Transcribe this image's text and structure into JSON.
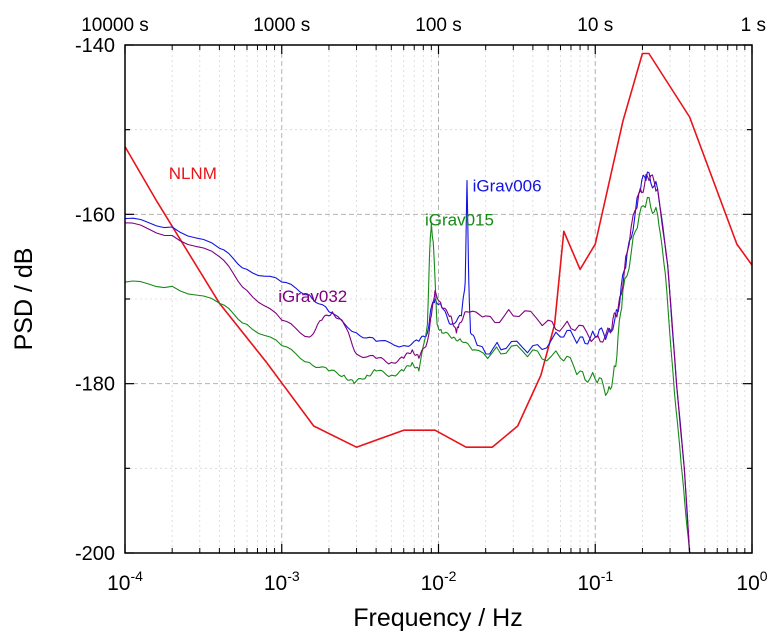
{
  "chart_data": {
    "type": "line",
    "xlabel": "Frequency / Hz",
    "ylabel": "PSD / dB",
    "x_scale": "log",
    "xlim": [
      0.0001,
      1
    ],
    "ylim": [
      -200,
      -140
    ],
    "grid": true,
    "x_ticks": [
      {
        "value": 0.0001,
        "base": "10",
        "exp": "-4"
      },
      {
        "value": 0.001,
        "base": "10",
        "exp": "-3"
      },
      {
        "value": 0.01,
        "base": "10",
        "exp": "-2"
      },
      {
        "value": 0.1,
        "base": "10",
        "exp": "-1"
      },
      {
        "value": 1,
        "base": "10",
        "exp": "0"
      }
    ],
    "top_ticks": [
      {
        "value": 0.0001,
        "label": "10000 s"
      },
      {
        "value": 0.001,
        "label": "1000 s"
      },
      {
        "value": 0.01,
        "label": "100 s"
      },
      {
        "value": 0.1,
        "label": "10 s"
      },
      {
        "value": 1,
        "label": "1 s"
      }
    ],
    "y_ticks": [
      {
        "value": -140,
        "label": "-140"
      },
      {
        "value": -160,
        "label": "-160"
      },
      {
        "value": -180,
        "label": "-180"
      },
      {
        "value": -200,
        "label": "-200"
      }
    ],
    "series": [
      {
        "name": "NLNM",
        "color": "#e8141b",
        "label_at": [
          0.00019,
          -155
        ],
        "points": [
          [
            0.0001,
            -152
          ],
          [
            0.00016,
            -158.5
          ],
          [
            0.0004,
            -170.5
          ],
          [
            0.0008,
            -177.5
          ],
          [
            0.0016,
            -185
          ],
          [
            0.003,
            -187.5
          ],
          [
            0.006,
            -185.5
          ],
          [
            0.0095,
            -185.5
          ],
          [
            0.015,
            -187.5
          ],
          [
            0.022,
            -187.5
          ],
          [
            0.032,
            -185
          ],
          [
            0.045,
            -179
          ],
          [
            0.055,
            -173
          ],
          [
            0.063,
            -162
          ],
          [
            0.08,
            -166.5
          ],
          [
            0.1,
            -163.5
          ],
          [
            0.15,
            -149
          ],
          [
            0.2,
            -141
          ],
          [
            0.22,
            -141
          ],
          [
            0.4,
            -148.5
          ],
          [
            0.8,
            -163.5
          ],
          [
            1,
            -166
          ]
        ]
      },
      {
        "name": "iGrav006",
        "color": "#1414e0",
        "label_at": [
          0.0165,
          -156.5
        ],
        "points": [
          [
            0.0001,
            -160.5
          ],
          [
            0.0002,
            -161.5
          ],
          [
            0.0004,
            -164
          ],
          [
            0.0006,
            -166.5
          ],
          [
            0.001,
            -168
          ],
          [
            0.0015,
            -169.5
          ],
          [
            0.002,
            -171.5
          ],
          [
            0.003,
            -174
          ],
          [
            0.004,
            -175
          ],
          [
            0.006,
            -175.5
          ],
          [
            0.0075,
            -175
          ],
          [
            0.0085,
            -174
          ],
          [
            0.009,
            -171
          ],
          [
            0.0095,
            -170
          ],
          [
            0.0105,
            -171
          ],
          [
            0.012,
            -173
          ],
          [
            0.014,
            -172
          ],
          [
            0.0148,
            -168
          ],
          [
            0.0152,
            -156
          ],
          [
            0.0156,
            -168
          ],
          [
            0.016,
            -174
          ],
          [
            0.018,
            -175.5
          ],
          [
            0.025,
            -176
          ],
          [
            0.04,
            -175.5
          ],
          [
            0.06,
            -174.5
          ],
          [
            0.08,
            -174.5
          ],
          [
            0.1,
            -174.5
          ],
          [
            0.12,
            -174
          ],
          [
            0.14,
            -171.5
          ],
          [
            0.16,
            -164.5
          ],
          [
            0.19,
            -157.5
          ],
          [
            0.215,
            -155
          ],
          [
            0.25,
            -157
          ],
          [
            0.29,
            -166
          ],
          [
            0.33,
            -180
          ],
          [
            0.37,
            -190
          ],
          [
            0.4,
            -200
          ]
        ]
      },
      {
        "name": "iGrav015",
        "color": "#178a17",
        "label_at": [
          0.0082,
          -160.5
        ],
        "points": [
          [
            0.0001,
            -168
          ],
          [
            0.0002,
            -168.5
          ],
          [
            0.0004,
            -170.5
          ],
          [
            0.0006,
            -173
          ],
          [
            0.001,
            -175.5
          ],
          [
            0.0015,
            -177.5
          ],
          [
            0.002,
            -178.5
          ],
          [
            0.0025,
            -179
          ],
          [
            0.0029,
            -180
          ],
          [
            0.0035,
            -179
          ],
          [
            0.004,
            -178.5
          ],
          [
            0.005,
            -179
          ],
          [
            0.006,
            -178.5
          ],
          [
            0.0068,
            -177.5
          ],
          [
            0.0075,
            -178.5
          ],
          [
            0.0085,
            -173
          ],
          [
            0.0088,
            -164
          ],
          [
            0.009,
            -161
          ],
          [
            0.0093,
            -164
          ],
          [
            0.0098,
            -173
          ],
          [
            0.0105,
            -174
          ],
          [
            0.0125,
            -174.5
          ],
          [
            0.014,
            -175
          ],
          [
            0.017,
            -176
          ],
          [
            0.025,
            -176.5
          ],
          [
            0.04,
            -176
          ],
          [
            0.06,
            -177
          ],
          [
            0.08,
            -178.5
          ],
          [
            0.1,
            -179.5
          ],
          [
            0.12,
            -181
          ],
          [
            0.135,
            -178
          ],
          [
            0.15,
            -169
          ],
          [
            0.18,
            -162
          ],
          [
            0.215,
            -158
          ],
          [
            0.25,
            -160
          ],
          [
            0.28,
            -167
          ],
          [
            0.32,
            -181
          ],
          [
            0.36,
            -191
          ],
          [
            0.4,
            -200
          ]
        ]
      },
      {
        "name": "iGrav032",
        "color": "#800080",
        "label_at": [
          0.00095,
          -169.5
        ],
        "points": [
          [
            0.0001,
            -161
          ],
          [
            0.0002,
            -162.5
          ],
          [
            0.0004,
            -165
          ],
          [
            0.0006,
            -169
          ],
          [
            0.001,
            -172.5
          ],
          [
            0.0015,
            -174.5
          ],
          [
            0.0018,
            -172.5
          ],
          [
            0.0021,
            -171.5
          ],
          [
            0.0025,
            -173
          ],
          [
            0.003,
            -176.5
          ],
          [
            0.004,
            -177
          ],
          [
            0.005,
            -177.5
          ],
          [
            0.006,
            -177
          ],
          [
            0.0068,
            -176
          ],
          [
            0.0075,
            -177
          ],
          [
            0.0085,
            -175
          ],
          [
            0.009,
            -172
          ],
          [
            0.0095,
            -169
          ],
          [
            0.0105,
            -171
          ],
          [
            0.012,
            -172
          ],
          [
            0.013,
            -174
          ],
          [
            0.0135,
            -173
          ],
          [
            0.015,
            -171.5
          ],
          [
            0.02,
            -172
          ],
          [
            0.03,
            -172
          ],
          [
            0.05,
            -172.5
          ],
          [
            0.07,
            -173.5
          ],
          [
            0.1,
            -174.5
          ],
          [
            0.125,
            -174
          ],
          [
            0.14,
            -171
          ],
          [
            0.16,
            -164.5
          ],
          [
            0.19,
            -157.5
          ],
          [
            0.215,
            -155.5
          ],
          [
            0.25,
            -157
          ],
          [
            0.29,
            -166
          ],
          [
            0.33,
            -180
          ],
          [
            0.37,
            -190
          ],
          [
            0.4,
            -200
          ]
        ]
      }
    ]
  }
}
